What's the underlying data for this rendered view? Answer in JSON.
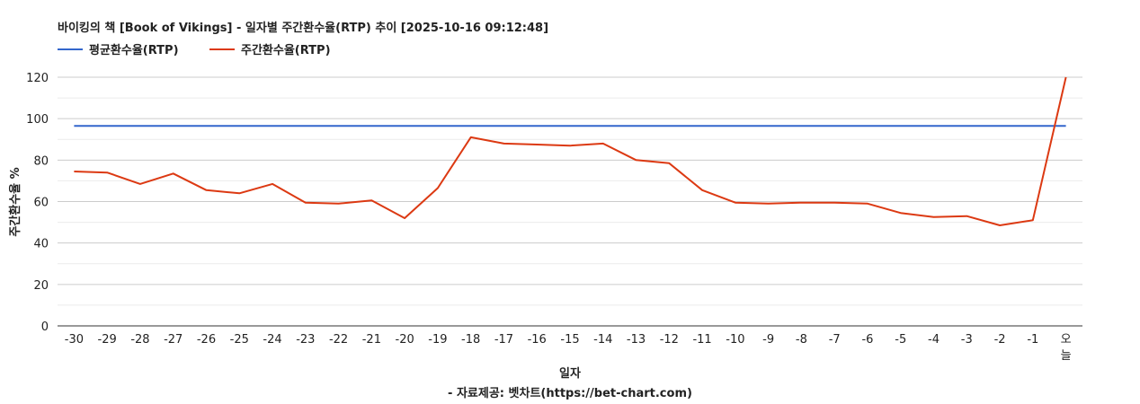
{
  "chart_data": {
    "type": "line",
    "title": "바이킹의 책 [Book of Vikings] - 일자별 주간환수율(RTP) 추이 [2025-10-16 09:12:48]",
    "xlabel": "일자",
    "ylabel": "주간환수율 %",
    "source_note": "- 자료제공: 벳차트(https://bet-chart.com)",
    "ylim": [
      0,
      120
    ],
    "yticks": [
      "0",
      "20",
      "40",
      "60",
      "80",
      "100",
      "120"
    ],
    "categories": [
      "-30",
      "-29",
      "-28",
      "-27",
      "-26",
      "-25",
      "-24",
      "-23",
      "-22",
      "-21",
      "-20",
      "-19",
      "-18",
      "-17",
      "-16",
      "-15",
      "-14",
      "-13",
      "-12",
      "-11",
      "-10",
      "-9",
      "-8",
      "-7",
      "-6",
      "-5",
      "-4",
      "-3",
      "-2",
      "-1",
      "오늘"
    ],
    "grid": true,
    "legend_position": "top-left",
    "series": [
      {
        "name": "평균환수율(RTP)",
        "color": "#3366cc",
        "values": [
          96.5,
          96.5,
          96.5,
          96.5,
          96.5,
          96.5,
          96.5,
          96.5,
          96.5,
          96.5,
          96.5,
          96.5,
          96.5,
          96.5,
          96.5,
          96.5,
          96.5,
          96.5,
          96.5,
          96.5,
          96.5,
          96.5,
          96.5,
          96.5,
          96.5,
          96.5,
          96.5,
          96.5,
          96.5,
          96.5,
          96.5
        ]
      },
      {
        "name": "주간환수율(RTP)",
        "color": "#dc3912",
        "values": [
          74.5,
          74,
          68.5,
          73.5,
          65.5,
          64,
          68.5,
          59.5,
          59,
          60.5,
          52,
          66.5,
          91,
          88,
          87.5,
          87,
          88,
          80,
          78.5,
          65.5,
          59.5,
          59,
          59.5,
          59.5,
          59,
          54.5,
          52.5,
          53,
          48.5,
          51,
          120
        ]
      }
    ]
  }
}
